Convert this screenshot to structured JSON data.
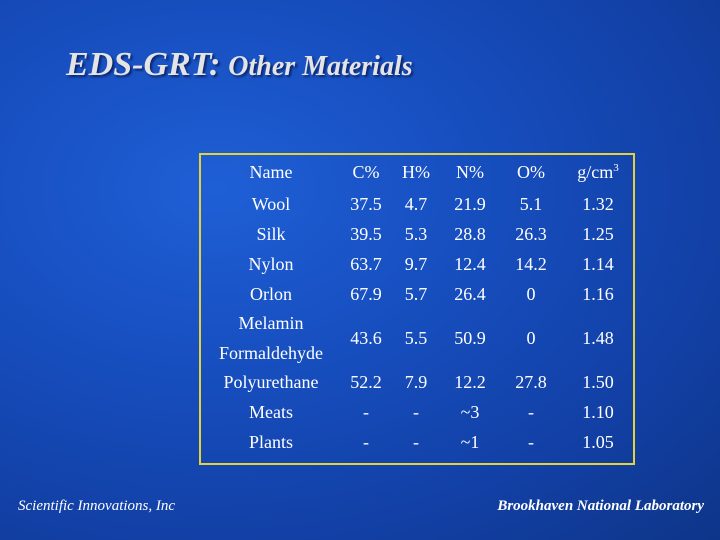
{
  "title": {
    "main": "EDS-GRT:",
    "sub": "Other Materials"
  },
  "table": {
    "headers": {
      "name": "Name",
      "c": "C%",
      "h": "H%",
      "n": "N%",
      "o": "O%",
      "density": "g/cm",
      "density_exp": "3"
    },
    "rows": [
      {
        "name": "Wool",
        "c": "37.5",
        "h": "4.7",
        "n": "21.9",
        "o": "5.1",
        "g": "1.32"
      },
      {
        "name": "Silk",
        "c": "39.5",
        "h": "5.3",
        "n": "28.8",
        "o": "26.3",
        "g": "1.25"
      },
      {
        "name": "Nylon",
        "c": "63.7",
        "h": "9.7",
        "n": "12.4",
        "o": "14.2",
        "g": "1.14"
      },
      {
        "name": "Orlon",
        "c": "67.9",
        "h": "5.7",
        "n": "26.4",
        "o": "0",
        "g": "1.16"
      },
      {
        "name_line1": "Melamin",
        "name_line2": "Formaldehyde",
        "c": "43.6",
        "h": "5.5",
        "n": "50.9",
        "o": "0",
        "g": "1.48"
      },
      {
        "name": "Polyurethane",
        "c": "52.2",
        "h": "7.9",
        "n": "12.2",
        "o": "27.8",
        "g": "1.50"
      },
      {
        "name": "Meats",
        "c": "-",
        "h": "-",
        "n": "~3",
        "o": "-",
        "g": "1.10"
      },
      {
        "name": "Plants",
        "c": "-",
        "h": "-",
        "n": "~1",
        "o": "-",
        "g": "1.05"
      }
    ],
    "border_color": "#e3d23a"
  },
  "footer": {
    "left": "Scientific Innovations, Inc",
    "right": "Brookhaven National Laboratory"
  },
  "colors": {
    "background": "#174fc0",
    "text": "#ffffff",
    "title": "#e4e4e4"
  }
}
